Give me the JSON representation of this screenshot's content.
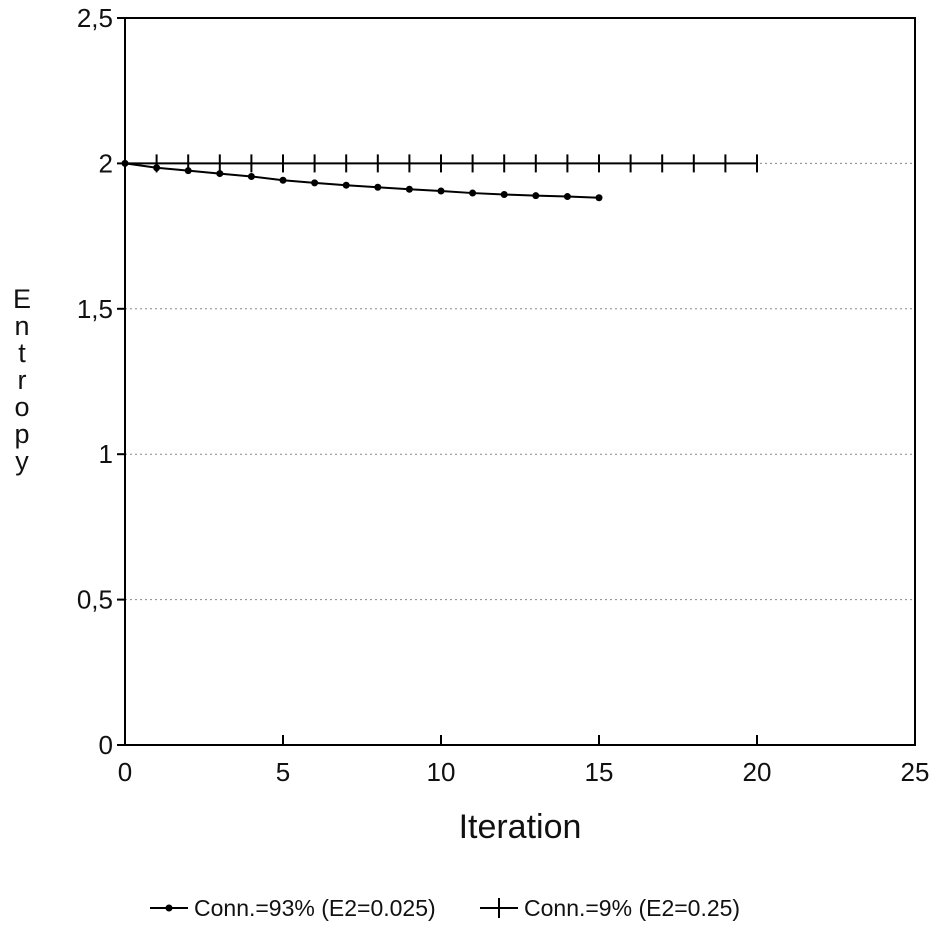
{
  "chart_data": {
    "type": "line",
    "title": "",
    "xlabel": "Iteration",
    "ylabel": "Entropy",
    "xlim": [
      0,
      25
    ],
    "ylim": [
      0,
      2.5
    ],
    "x_ticks": [
      0,
      5,
      10,
      15,
      20,
      25
    ],
    "x_tick_labels": [
      "0",
      "5",
      "10",
      "15",
      "20",
      "25"
    ],
    "y_ticks": [
      0,
      0.5,
      1,
      1.5,
      2,
      2.5
    ],
    "y_tick_labels": [
      "0",
      "0,5",
      "1",
      "1,5",
      "2",
      "2,5"
    ],
    "grid": "horizontal dotted",
    "legend_position": "bottom",
    "series": [
      {
        "name": "Conn.=93% (E2=0.025)",
        "marker": "dot",
        "color": "#000000",
        "x": [
          0,
          1,
          2,
          3,
          4,
          5,
          6,
          7,
          8,
          9,
          10,
          11,
          12,
          13,
          14,
          15
        ],
        "values": [
          2.0,
          1.985,
          1.975,
          1.965,
          1.955,
          1.942,
          1.933,
          1.925,
          1.918,
          1.911,
          1.905,
          1.898,
          1.893,
          1.889,
          1.886,
          1.882
        ]
      },
      {
        "name": "Conn.=9% (E2=0.25)",
        "marker": "plus",
        "color": "#000000",
        "x": [
          0,
          1,
          2,
          3,
          4,
          5,
          6,
          7,
          8,
          9,
          10,
          11,
          12,
          13,
          14,
          15,
          16,
          17,
          18,
          19,
          20
        ],
        "values": [
          2.0,
          2.0,
          2.0,
          2.0,
          2.0,
          2.0,
          2.0,
          2.0,
          2.0,
          2.0,
          2.0,
          2.0,
          2.0,
          2.0,
          2.0,
          2.0,
          2.0,
          2.0,
          2.0,
          2.0,
          2.0
        ]
      }
    ]
  }
}
